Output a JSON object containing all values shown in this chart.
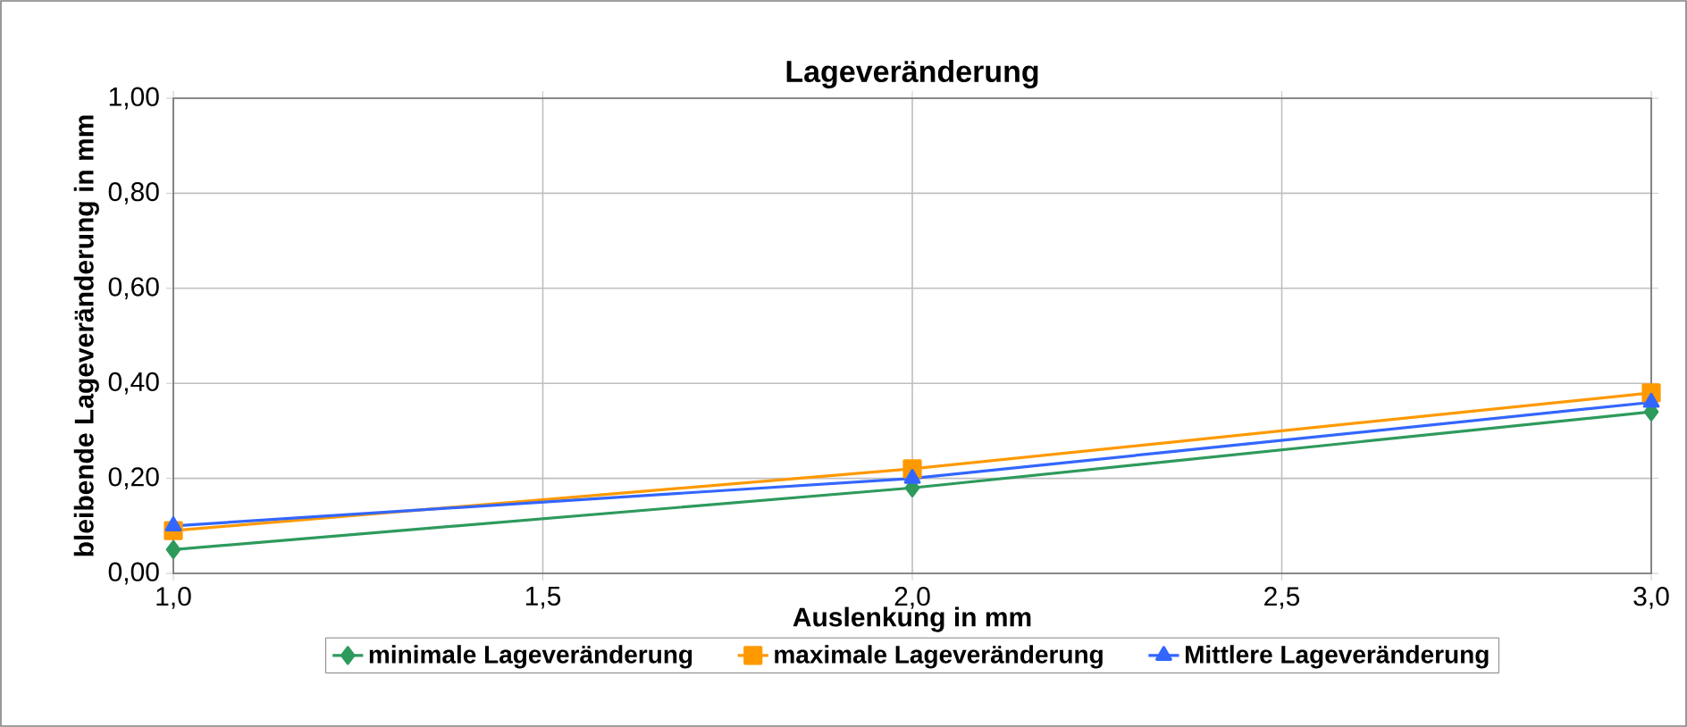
{
  "chart_data": {
    "type": "line",
    "title": "Lageveränderung",
    "xlabel": "Auslenkung in mm",
    "ylabel": "bleibende Lageveränderung in mm",
    "x": [
      1.0,
      2.0,
      3.0
    ],
    "series": [
      {
        "name": "minimale Lageveränderung",
        "color": "#2e9a5c",
        "marker": "diamond",
        "values": [
          0.05,
          0.18,
          0.34
        ]
      },
      {
        "name": "maximale Lageveränderung",
        "color": "#ff9900",
        "marker": "square",
        "values": [
          0.09,
          0.22,
          0.38
        ]
      },
      {
        "name": "Mittlere Lageveränderung",
        "color": "#3366ff",
        "marker": "triangle",
        "values": [
          0.1,
          0.2,
          0.36
        ]
      }
    ],
    "xlim": [
      1.0,
      3.0
    ],
    "ylim": [
      0,
      1.0
    ],
    "xticks": [
      {
        "value": 1.0,
        "label": "1,0"
      },
      {
        "value": 1.5,
        "label": "1,5"
      },
      {
        "value": 2.0,
        "label": "2,0"
      },
      {
        "value": 2.5,
        "label": "2,5"
      },
      {
        "value": 3.0,
        "label": "3,0"
      }
    ],
    "yticks": [
      {
        "value": 0,
        "label": "0,00"
      },
      {
        "value": 0.2,
        "label": "0,20"
      },
      {
        "value": 0.4,
        "label": "0,40"
      },
      {
        "value": 0.6,
        "label": "0,60"
      },
      {
        "value": 0.8,
        "label": "0,80"
      },
      {
        "value": 1.0,
        "label": "1,00"
      }
    ],
    "grid": true,
    "legend": "bottom",
    "line_style": "solid"
  }
}
